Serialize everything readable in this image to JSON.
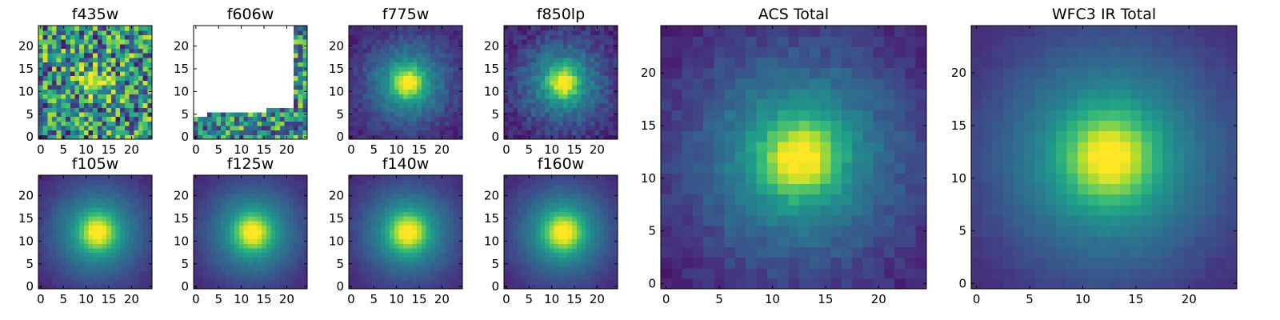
{
  "chart_data": [
    {
      "type": "heatmap",
      "title": "f435w",
      "xlim": [
        -0.5,
        24.5
      ],
      "ylim": [
        -0.5,
        24.5
      ],
      "xticks": [
        "0",
        "5",
        "10",
        "15",
        "20"
      ],
      "yticks": [
        "0",
        "5",
        "10",
        "15",
        "20"
      ],
      "colormap": "viridis",
      "pattern": "noisy",
      "source": {
        "x": 12,
        "y": 12
      },
      "noise": 0.55
    },
    {
      "type": "heatmap",
      "title": "f606w",
      "xlim": [
        -0.5,
        24.5
      ],
      "ylim": [
        -0.5,
        24.5
      ],
      "xticks": [
        "0",
        "5",
        "10",
        "15",
        "20"
      ],
      "yticks": [
        "0",
        "5",
        "10",
        "15",
        "20"
      ],
      "colormap": "viridis",
      "pattern": "masked",
      "masked_color": "#ffffff",
      "noise": 0.6
    },
    {
      "type": "heatmap",
      "title": "f775w",
      "xlim": [
        -0.5,
        24.5
      ],
      "ylim": [
        -0.5,
        24.5
      ],
      "xticks": [
        "0",
        "5",
        "10",
        "15",
        "20"
      ],
      "yticks": [
        "0",
        "5",
        "10",
        "15",
        "20"
      ],
      "colormap": "viridis",
      "pattern": "gaussian",
      "source": {
        "x": 12.5,
        "y": 12
      },
      "sigma": 2.2,
      "halo_sigma": 6.5,
      "noise": 0.06
    },
    {
      "type": "heatmap",
      "title": "f850lp",
      "xlim": [
        -0.5,
        24.5
      ],
      "ylim": [
        -0.5,
        24.5
      ],
      "xticks": [
        "0",
        "5",
        "10",
        "15",
        "20"
      ],
      "yticks": [
        "0",
        "5",
        "10",
        "15",
        "20"
      ],
      "colormap": "viridis",
      "pattern": "gaussian",
      "source": {
        "x": 12.5,
        "y": 12
      },
      "sigma": 2.2,
      "halo_sigma": 6.5,
      "noise": 0.08
    },
    {
      "type": "heatmap",
      "title": "f105w",
      "xlim": [
        -0.5,
        24.5
      ],
      "ylim": [
        -0.5,
        24.5
      ],
      "xticks": [
        "0",
        "5",
        "10",
        "15",
        "20"
      ],
      "yticks": [
        "0",
        "5",
        "10",
        "15",
        "20"
      ],
      "colormap": "viridis",
      "pattern": "gaussian",
      "source": {
        "x": 12.5,
        "y": 12
      },
      "sigma": 2.6,
      "halo_sigma": 7.5,
      "noise": 0.02
    },
    {
      "type": "heatmap",
      "title": "f125w",
      "xlim": [
        -0.5,
        24.5
      ],
      "ylim": [
        -0.5,
        24.5
      ],
      "xticks": [
        "0",
        "5",
        "10",
        "15",
        "20"
      ],
      "yticks": [
        "0",
        "5",
        "10",
        "15",
        "20"
      ],
      "colormap": "viridis",
      "pattern": "gaussian",
      "source": {
        "x": 12.5,
        "y": 12
      },
      "sigma": 2.6,
      "halo_sigma": 7.5,
      "noise": 0.02
    },
    {
      "type": "heatmap",
      "title": "f140w",
      "xlim": [
        -0.5,
        24.5
      ],
      "ylim": [
        -0.5,
        24.5
      ],
      "xticks": [
        "0",
        "5",
        "10",
        "15",
        "20"
      ],
      "yticks": [
        "0",
        "5",
        "10",
        "15",
        "20"
      ],
      "colormap": "viridis",
      "pattern": "gaussian",
      "source": {
        "x": 12.5,
        "y": 12
      },
      "sigma": 2.7,
      "halo_sigma": 7.5,
      "noise": 0.02
    },
    {
      "type": "heatmap",
      "title": "f160w",
      "xlim": [
        -0.5,
        24.5
      ],
      "ylim": [
        -0.5,
        24.5
      ],
      "xticks": [
        "0",
        "5",
        "10",
        "15",
        "20"
      ],
      "yticks": [
        "0",
        "5",
        "10",
        "15",
        "20"
      ],
      "colormap": "viridis",
      "pattern": "gaussian",
      "source": {
        "x": 12.5,
        "y": 12
      },
      "sigma": 2.7,
      "halo_sigma": 7.5,
      "noise": 0.02
    },
    {
      "type": "heatmap",
      "title": "ACS Total",
      "xlim": [
        -0.5,
        24.5
      ],
      "ylim": [
        -0.5,
        24.5
      ],
      "xticks": [
        "0",
        "5",
        "10",
        "15",
        "20"
      ],
      "yticks": [
        "0",
        "5",
        "10",
        "15",
        "20"
      ],
      "colormap": "viridis",
      "pattern": "gaussian",
      "source": {
        "x": 12.5,
        "y": 12
      },
      "sigma": 2.3,
      "halo_sigma": 7.0,
      "noise": 0.05
    },
    {
      "type": "heatmap",
      "title": "WFC3 IR Total",
      "xlim": [
        -0.5,
        24.5
      ],
      "ylim": [
        -0.5,
        24.5
      ],
      "xticks": [
        "0",
        "5",
        "10",
        "15",
        "20"
      ],
      "yticks": [
        "0",
        "5",
        "10",
        "15",
        "20"
      ],
      "colormap": "viridis",
      "pattern": "gaussian",
      "source": {
        "x": 12.5,
        "y": 12
      },
      "sigma": 2.7,
      "halo_sigma": 8.0,
      "noise": 0.015
    }
  ]
}
